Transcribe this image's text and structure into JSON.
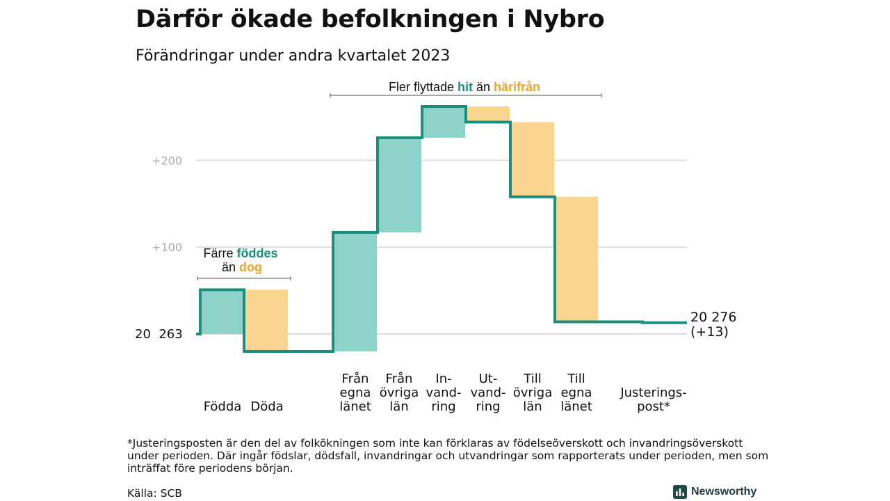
{
  "title": "Därför ökade befolkningen i Nybro",
  "subtitle": "Förändringar under andra kvartalet 2023",
  "chart_data": {
    "type": "waterfall",
    "start": {
      "label": "20  263",
      "value": 20263
    },
    "end": {
      "label_line1": "20 276",
      "label_line2": "(+13)",
      "value": 20276
    },
    "y_ticks": [
      {
        "label": "+200",
        "value": 200
      },
      {
        "label": "+100",
        "value": 100
      }
    ],
    "steps": [
      {
        "label": [
          "Födda"
        ],
        "delta": 51,
        "kind": "in"
      },
      {
        "label": [
          "Döda"
        ],
        "delta": -71,
        "kind": "out"
      },
      {
        "label": [
          "Från",
          "egna",
          "länet"
        ],
        "delta": 137,
        "kind": "in"
      },
      {
        "label": [
          "Från",
          "övriga",
          "län"
        ],
        "delta": 109,
        "kind": "in"
      },
      {
        "label": [
          "In-",
          "vand-",
          "ring"
        ],
        "delta": 36,
        "kind": "in"
      },
      {
        "label": [
          "Ut-",
          "vand-",
          "ring"
        ],
        "delta": -18,
        "kind": "out"
      },
      {
        "label": [
          "Till",
          "övriga",
          "län"
        ],
        "delta": -86,
        "kind": "out"
      },
      {
        "label": [
          "Till",
          "egna",
          "länet"
        ],
        "delta": -144,
        "kind": "out"
      },
      {
        "label": [
          "Justerings-",
          "post*"
        ],
        "delta": -1,
        "kind": "adjust"
      }
    ],
    "annotations": {
      "births": {
        "line1": "Färre ",
        "highlight1": "föddes",
        "line2": "än ",
        "highlight2": "dog"
      },
      "migration": {
        "text": "Fler flyttade ",
        "highlight1": "hit",
        "middle": "än ",
        "highlight2": "härifrån"
      }
    },
    "colors": {
      "in_fill": "#8dd3c9",
      "out_fill": "#fad58f",
      "line": "#1a8f7e",
      "teal_text": "#1a8f7e",
      "orange_text": "#f2a426",
      "grid": "#dddddd",
      "tick_text": "#aaaaaa"
    }
  },
  "footnote": "*Justeringsposten är den del av folkökningen som inte kan förklaras av födelseöverskott och invandringsöverskott under perioden. Där ingår födslar, dödsfall, invandringar och utvandringar som rapporterats under perioden, men som inträffat före periodens början.",
  "source": "Källa: SCB",
  "brand": {
    "name": "Newsworthy",
    "icon": "newsworthy-logo-icon"
  }
}
